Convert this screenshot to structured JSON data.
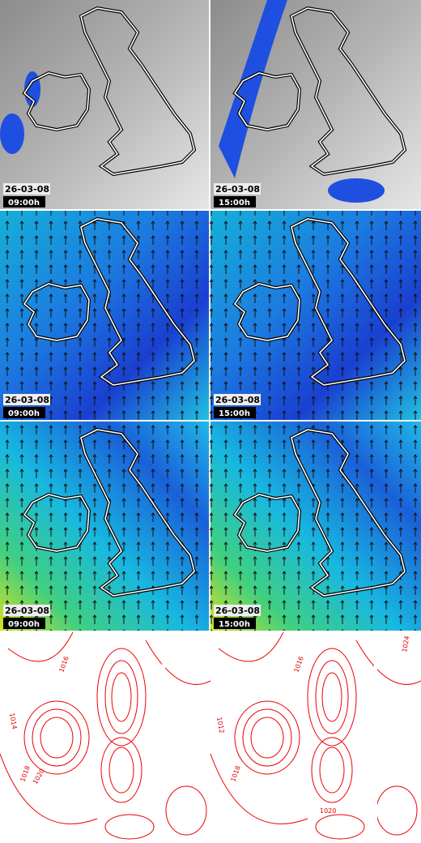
{
  "panels": [
    {
      "date": "26-03-08",
      "time": "09:00h"
    },
    {
      "date": "26-03-08",
      "time": "15:00h"
    },
    {
      "date": "26-03-08",
      "time": "09:00h"
    },
    {
      "date": "26-03-08",
      "time": "15:00h"
    },
    {
      "date": "26-03-08",
      "time": "09:00h"
    },
    {
      "date": "26-03-08",
      "time": "15:00h"
    }
  ],
  "contour_labels": [
    "1014",
    "1016",
    "1018",
    "1020",
    "1012",
    "1016",
    "1024",
    "1018",
    "1020"
  ]
}
